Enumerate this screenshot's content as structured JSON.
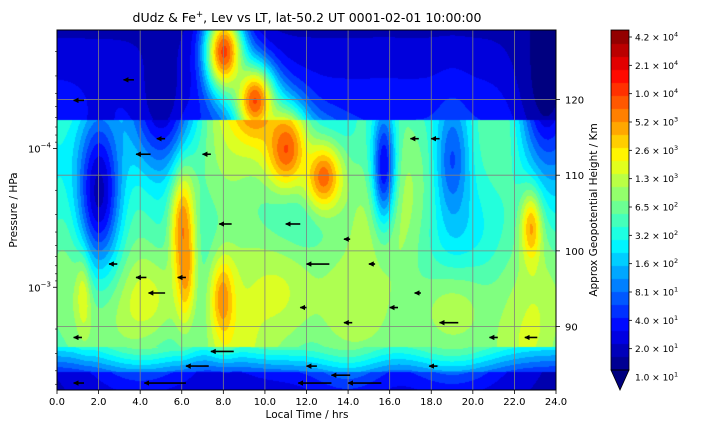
{
  "chart_data": {
    "type": "heatmap",
    "title": "dUdz & Fe⁺, Lev vs LT, lat-50.2 UT 0001-02-01 10:00:00",
    "title_main": "dUdz & Fe",
    "title_sup": "+",
    "title_rest": ", Lev vs LT, lat-50.2 UT 0001-02-01 10:00:00",
    "xlabel": "Local Time / hrs",
    "ylabel": "Pressure / HPa",
    "ylabel_right": "Approx Geopotential Height / Km",
    "xlim": [
      0,
      24
    ],
    "x_ticks": [
      "0.0",
      "2.0",
      "4.0",
      "6.0",
      "8.0",
      "10.0",
      "12.0",
      "14.0",
      "16.0",
      "18.0",
      "20.0",
      "22.0",
      "24.0"
    ],
    "y_scale": "log",
    "ylim": [
      0.0055,
      1.4e-05
    ],
    "y_ticks": [
      {
        "value": 0.0001,
        "label_base": "10",
        "label_exp": "−4"
      },
      {
        "value": 0.001,
        "label_base": "10",
        "label_exp": "−3"
      }
    ],
    "y_right_ticks": [
      {
        "value": 120,
        "label": "120"
      },
      {
        "value": 110,
        "label": "110"
      },
      {
        "value": 100,
        "label": "100"
      },
      {
        "value": 90,
        "label": "90"
      }
    ],
    "grid": true,
    "colormap": "jet",
    "colorbar": {
      "scale": "log",
      "min": 10,
      "max": 42000,
      "extend": "min",
      "ticks": [
        {
          "base": "1.0",
          "exp": "1"
        },
        {
          "base": "2.0",
          "exp": "1"
        },
        {
          "base": "4.0",
          "exp": "1"
        },
        {
          "base": "8.1",
          "exp": "1"
        },
        {
          "base": "1.6",
          "exp": "2"
        },
        {
          "base": "3.2",
          "exp": "2"
        },
        {
          "base": "6.5",
          "exp": "2"
        },
        {
          "base": "1.3",
          "exp": "3"
        },
        {
          "base": "2.6",
          "exp": "3"
        },
        {
          "base": "5.2",
          "exp": "3"
        },
        {
          "base": "1.0",
          "exp": "4"
        },
        {
          "base": "2.1",
          "exp": "4"
        },
        {
          "base": "4.2",
          "exp": "4"
        }
      ]
    },
    "features": [
      {
        "lt": 6.0,
        "p": 0.00035,
        "level": 0.78,
        "sx": 0.6,
        "sy": 0.55
      },
      {
        "lt": 6.1,
        "p": 0.0008,
        "level": 0.85,
        "sx": 0.45,
        "sy": 0.35
      },
      {
        "lt": 8.0,
        "p": 2e-05,
        "level": 0.82,
        "sx": 1.0,
        "sy": 0.35
      },
      {
        "lt": 9.5,
        "p": 4.5e-05,
        "level": 0.8,
        "sx": 1.0,
        "sy": 0.3
      },
      {
        "lt": 11.0,
        "p": 0.0001,
        "level": 0.8,
        "sx": 1.1,
        "sy": 0.35
      },
      {
        "lt": 12.8,
        "p": 0.00016,
        "level": 0.78,
        "sx": 1.0,
        "sy": 0.3
      },
      {
        "lt": 8.0,
        "p": 0.0012,
        "level": 0.85,
        "sx": 0.6,
        "sy": 0.3
      },
      {
        "lt": 1.3,
        "p": 0.00095,
        "level": 0.78,
        "sx": 0.35,
        "sy": 0.3
      },
      {
        "lt": 22.8,
        "p": 0.00035,
        "level": 0.78,
        "sx": 0.5,
        "sy": 0.3
      },
      {
        "lt": 4.0,
        "p": 0.0012,
        "level": 0.6,
        "sx": 2.5,
        "sy": 0.5
      },
      {
        "lt": 10.5,
        "p": 0.0011,
        "level": 0.58,
        "sx": 2.5,
        "sy": 0.45
      },
      {
        "lt": 14.0,
        "p": 0.0014,
        "level": 0.55,
        "sx": 2.0,
        "sy": 0.5
      },
      {
        "lt": 19.0,
        "p": 0.0015,
        "level": 0.55,
        "sx": 2.5,
        "sy": 0.45
      },
      {
        "lt": 15.7,
        "p": 0.00013,
        "level": 0.12,
        "sx": 0.6,
        "sy": 0.5
      },
      {
        "lt": 19.0,
        "p": 0.00012,
        "level": 0.2,
        "sx": 0.8,
        "sy": 0.5
      },
      {
        "lt": 5.0,
        "p": 4e-05,
        "level": 0.05,
        "sx": 1.5,
        "sy": 0.6
      },
      {
        "lt": 2.0,
        "p": 0.0002,
        "level": 0.05,
        "sx": 1.2,
        "sy": 0.7
      },
      {
        "lt": 23.5,
        "p": 3e-05,
        "level": 0.0,
        "sx": 1.5,
        "sy": 0.8
      }
    ],
    "arrows": [
      {
        "lt": 3.2,
        "p": 3.2e-05,
        "len": 0.5
      },
      {
        "lt": 0.8,
        "p": 4.5e-05,
        "len": 0.5
      },
      {
        "lt": 4.8,
        "p": 8.5e-05,
        "len": 0.4
      },
      {
        "lt": 3.8,
        "p": 0.00011,
        "len": 0.7
      },
      {
        "lt": 7.0,
        "p": 0.00011,
        "len": 0.4
      },
      {
        "lt": 17.0,
        "p": 8.5e-05,
        "len": 0.4
      },
      {
        "lt": 18.0,
        "p": 8.5e-05,
        "len": 0.4
      },
      {
        "lt": 7.8,
        "p": 0.00035,
        "len": 0.6
      },
      {
        "lt": 11.0,
        "p": 0.00035,
        "len": 0.7
      },
      {
        "lt": 13.8,
        "p": 0.00045,
        "len": 0.3
      },
      {
        "lt": 2.5,
        "p": 0.00068,
        "len": 0.4
      },
      {
        "lt": 12.0,
        "p": 0.00068,
        "len": 1.1
      },
      {
        "lt": 15.0,
        "p": 0.00068,
        "len": 0.3
      },
      {
        "lt": 3.8,
        "p": 0.00085,
        "len": 0.5
      },
      {
        "lt": 5.8,
        "p": 0.00085,
        "len": 0.4
      },
      {
        "lt": 4.4,
        "p": 0.0011,
        "len": 0.8
      },
      {
        "lt": 17.2,
        "p": 0.0011,
        "len": 0.3
      },
      {
        "lt": 11.7,
        "p": 0.0014,
        "len": 0.3
      },
      {
        "lt": 16.0,
        "p": 0.0014,
        "len": 0.4
      },
      {
        "lt": 13.8,
        "p": 0.0018,
        "len": 0.4
      },
      {
        "lt": 18.4,
        "p": 0.0018,
        "len": 0.9
      },
      {
        "lt": 0.8,
        "p": 0.0023,
        "len": 0.4
      },
      {
        "lt": 20.8,
        "p": 0.0023,
        "len": 0.4
      },
      {
        "lt": 22.5,
        "p": 0.0023,
        "len": 0.6
      },
      {
        "lt": 7.4,
        "p": 0.0029,
        "len": 1.1
      },
      {
        "lt": 6.2,
        "p": 0.0037,
        "len": 1.1
      },
      {
        "lt": 12.0,
        "p": 0.0037,
        "len": 0.5
      },
      {
        "lt": 17.9,
        "p": 0.0037,
        "len": 0.4
      },
      {
        "lt": 13.2,
        "p": 0.0043,
        "len": 0.9
      },
      {
        "lt": 0.8,
        "p": 0.0049,
        "len": 0.5
      },
      {
        "lt": 4.2,
        "p": 0.0049,
        "len": 2.0
      },
      {
        "lt": 11.6,
        "p": 0.0049,
        "len": 1.6
      },
      {
        "lt": 14.0,
        "p": 0.0049,
        "len": 1.6
      }
    ]
  }
}
